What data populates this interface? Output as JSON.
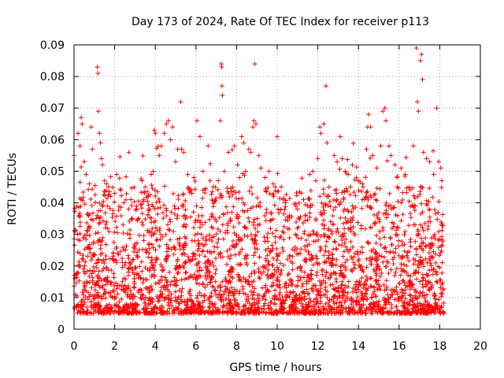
{
  "chart_data": {
    "type": "scatter",
    "title": "Day 173 of 2024, Rate Of TEC Index for receiver p113",
    "xlabel": "GPS time / hours",
    "ylabel": "ROTI / TECUs",
    "xlim": [
      0,
      20
    ],
    "ylim": [
      0,
      0.09
    ],
    "x_ticks": [
      0,
      2,
      4,
      6,
      8,
      10,
      12,
      14,
      16,
      18,
      20
    ],
    "x_tick_labels": [
      "0",
      "2",
      "4",
      "6",
      "8",
      "10",
      "12",
      "14",
      "16",
      "18",
      "20"
    ],
    "y_ticks": [
      0,
      0.01,
      0.02,
      0.03,
      0.04,
      0.05,
      0.06,
      0.07,
      0.08,
      0.09
    ],
    "y_tick_labels": [
      "0",
      "0.01",
      "0.02",
      "0.03",
      "0.04",
      "0.05",
      "0.06",
      "0.07",
      "0.08",
      "0.09"
    ],
    "grid": true,
    "marker": "+",
    "color": "#ff0000",
    "data_x_range": [
      0,
      18.2
    ],
    "typical_roti_range": [
      0.005,
      0.03
    ],
    "series": [
      {
        "name": "ROTI p113",
        "points": [
          [
            0.0,
            0.055
          ],
          [
            0.2,
            0.062
          ],
          [
            0.3,
            0.058
          ],
          [
            0.35,
            0.067
          ],
          [
            0.4,
            0.065
          ],
          [
            0.5,
            0.053
          ],
          [
            0.6,
            0.049
          ],
          [
            0.75,
            0.046
          ],
          [
            0.85,
            0.064
          ],
          [
            0.9,
            0.057
          ],
          [
            1.15,
            0.083
          ],
          [
            1.18,
            0.081
          ],
          [
            1.2,
            0.069
          ],
          [
            1.25,
            0.062
          ],
          [
            1.3,
            0.059
          ],
          [
            1.35,
            0.054
          ],
          [
            1.4,
            0.052
          ],
          [
            1.5,
            0.047
          ],
          [
            1.6,
            0.046
          ],
          [
            1.7,
            0.045
          ],
          [
            2.0,
            0.043
          ],
          [
            2.1,
            0.049
          ],
          [
            2.3,
            0.044
          ],
          [
            2.45,
            0.04
          ],
          [
            2.8,
            0.041
          ],
          [
            3.1,
            0.038
          ],
          [
            3.35,
            0.047
          ],
          [
            3.5,
            0.045
          ],
          [
            3.65,
            0.042
          ],
          [
            3.8,
            0.049
          ],
          [
            3.9,
            0.05
          ],
          [
            3.95,
            0.063
          ],
          [
            4.0,
            0.062
          ],
          [
            4.2,
            0.055
          ],
          [
            4.3,
            0.058
          ],
          [
            4.45,
            0.062
          ],
          [
            4.55,
            0.065
          ],
          [
            4.65,
            0.066
          ],
          [
            4.75,
            0.06
          ],
          [
            4.85,
            0.064
          ],
          [
            5.0,
            0.053
          ],
          [
            5.1,
            0.057
          ],
          [
            5.25,
            0.072
          ],
          [
            5.3,
            0.057
          ],
          [
            5.4,
            0.056
          ],
          [
            5.6,
            0.049
          ],
          [
            5.8,
            0.043
          ],
          [
            5.9,
            0.048
          ],
          [
            6.05,
            0.066
          ],
          [
            6.2,
            0.061
          ],
          [
            6.35,
            0.05
          ],
          [
            6.6,
            0.058
          ],
          [
            6.7,
            0.047
          ],
          [
            6.85,
            0.045
          ],
          [
            6.95,
            0.045
          ],
          [
            7.1,
            0.047
          ],
          [
            7.2,
            0.066
          ],
          [
            7.25,
            0.084
          ],
          [
            7.27,
            0.083
          ],
          [
            7.28,
            0.077
          ],
          [
            7.3,
            0.074
          ],
          [
            7.4,
            0.05
          ],
          [
            7.6,
            0.056
          ],
          [
            7.8,
            0.045
          ],
          [
            7.9,
            0.058
          ],
          [
            8.05,
            0.052
          ],
          [
            8.15,
            0.048
          ],
          [
            8.25,
            0.061
          ],
          [
            8.35,
            0.059
          ],
          [
            8.45,
            0.05
          ],
          [
            8.6,
            0.057
          ],
          [
            8.7,
            0.056
          ],
          [
            8.8,
            0.064
          ],
          [
            8.85,
            0.066
          ],
          [
            8.9,
            0.084
          ],
          [
            8.95,
            0.065
          ],
          [
            9.1,
            0.055
          ],
          [
            9.2,
            0.051
          ],
          [
            9.4,
            0.048
          ],
          [
            9.6,
            0.05
          ],
          [
            9.8,
            0.046
          ],
          [
            9.9,
            0.045
          ],
          [
            10.0,
            0.061
          ],
          [
            10.2,
            0.045
          ],
          [
            10.4,
            0.04
          ],
          [
            10.6,
            0.036
          ],
          [
            10.9,
            0.03
          ],
          [
            11.0,
            0.038
          ],
          [
            11.3,
            0.041
          ],
          [
            11.5,
            0.039
          ],
          [
            11.6,
            0.049
          ],
          [
            11.75,
            0.05
          ],
          [
            11.9,
            0.047
          ],
          [
            12.0,
            0.054
          ],
          [
            12.1,
            0.064
          ],
          [
            12.15,
            0.062
          ],
          [
            12.3,
            0.065
          ],
          [
            12.4,
            0.077
          ],
          [
            12.45,
            0.059
          ],
          [
            12.55,
            0.045
          ],
          [
            12.8,
            0.055
          ],
          [
            12.95,
            0.053
          ],
          [
            13.1,
            0.061
          ],
          [
            13.2,
            0.054
          ],
          [
            13.35,
            0.05
          ],
          [
            13.5,
            0.049
          ],
          [
            13.7,
            0.052
          ],
          [
            13.9,
            0.048
          ],
          [
            14.0,
            0.047
          ],
          [
            14.2,
            0.046
          ],
          [
            14.4,
            0.057
          ],
          [
            14.45,
            0.064
          ],
          [
            14.5,
            0.068
          ],
          [
            14.6,
            0.064
          ],
          [
            14.7,
            0.055
          ],
          [
            14.9,
            0.051
          ],
          [
            15.1,
            0.058
          ],
          [
            15.2,
            0.069
          ],
          [
            15.3,
            0.07
          ],
          [
            15.35,
            0.066
          ],
          [
            15.5,
            0.058
          ],
          [
            15.6,
            0.055
          ],
          [
            15.8,
            0.052
          ],
          [
            15.9,
            0.048
          ],
          [
            16.1,
            0.051
          ],
          [
            16.3,
            0.049
          ],
          [
            16.5,
            0.045
          ],
          [
            16.7,
            0.058
          ],
          [
            16.85,
            0.089
          ],
          [
            16.9,
            0.072
          ],
          [
            16.95,
            0.069
          ],
          [
            17.05,
            0.085
          ],
          [
            17.1,
            0.087
          ],
          [
            17.15,
            0.079
          ],
          [
            17.2,
            0.056
          ],
          [
            17.35,
            0.054
          ],
          [
            17.5,
            0.053
          ],
          [
            17.7,
            0.049
          ],
          [
            17.85,
            0.07
          ],
          [
            17.95,
            0.053
          ],
          [
            18.05,
            0.051
          ],
          [
            18.1,
            0.047
          ]
        ]
      }
    ]
  }
}
